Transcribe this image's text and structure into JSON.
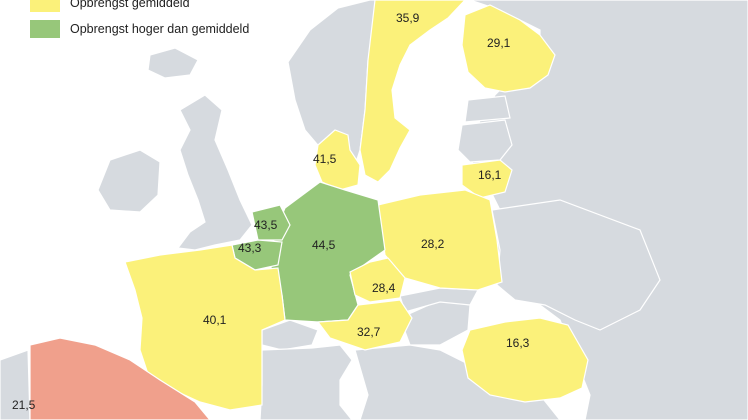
{
  "colors": {
    "sea": "#ffffff",
    "land_other": "#d6dadf",
    "border": "#ffffff",
    "average": "#fbf17a",
    "above_average": "#97c77a",
    "below_average": "#f0a08c"
  },
  "legend": [
    {
      "label": "Opbrengst gemiddeld",
      "color": "#fbf17a"
    },
    {
      "label": "Opbrengst hoger dan gemiddeld",
      "color": "#97c77a"
    }
  ],
  "values": {
    "sweden": "35,9",
    "finland": "29,1",
    "denmark": "41,5",
    "lithuania": "16,1",
    "netherlands": "43,5",
    "belgium": "43,3",
    "germany": "44,5",
    "poland": "28,2",
    "czechia": "28,4",
    "austria": "32,7",
    "france": "40,1",
    "romania": "16,3",
    "spain": "21,5"
  }
}
